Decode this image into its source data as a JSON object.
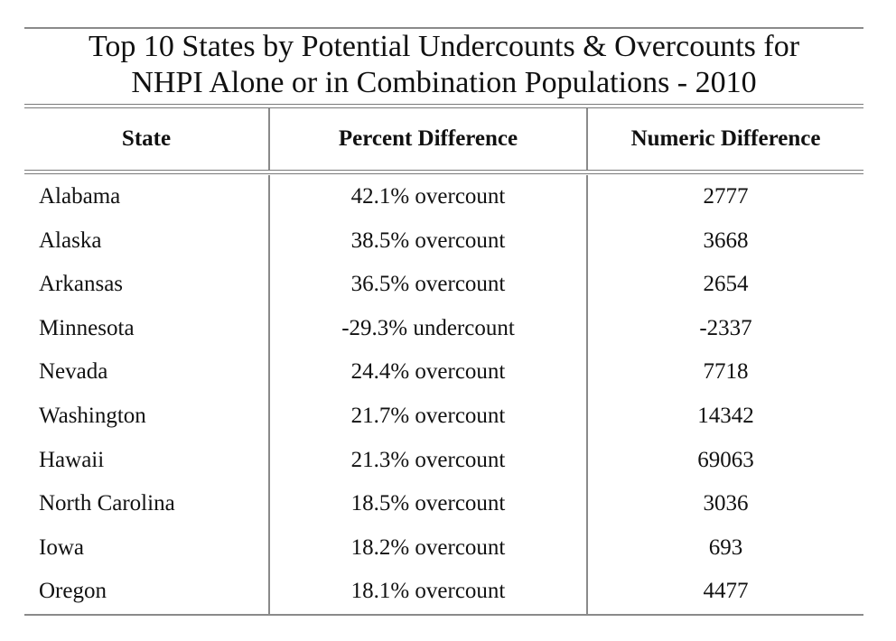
{
  "title": {
    "line1": "Top 10 States by Potential Undercounts & Overcounts for",
    "line2": "NHPI Alone or in Combination Populations - 2010"
  },
  "columns": [
    "State",
    "Percent Difference",
    "Numeric Difference"
  ],
  "rows": [
    {
      "state": "Alabama",
      "percent": "42.1% overcount",
      "numeric": "2777"
    },
    {
      "state": "Alaska",
      "percent": "38.5% overcount",
      "numeric": "3668"
    },
    {
      "state": "Arkansas",
      "percent": "36.5% overcount",
      "numeric": "2654"
    },
    {
      "state": "Minnesota",
      "percent": "-29.3% undercount",
      "numeric": "-2337"
    },
    {
      "state": "Nevada",
      "percent": "24.4% overcount",
      "numeric": "7718"
    },
    {
      "state": "Washington",
      "percent": "21.7% overcount",
      "numeric": "14342"
    },
    {
      "state": "Hawaii",
      "percent": "21.3% overcount",
      "numeric": "69063"
    },
    {
      "state": "North Carolina",
      "percent": "18.5% overcount",
      "numeric": "3036"
    },
    {
      "state": "Iowa",
      "percent": "18.2% overcount",
      "numeric": "693"
    },
    {
      "state": "Oregon",
      "percent": "18.1% overcount",
      "numeric": "4477"
    }
  ]
}
